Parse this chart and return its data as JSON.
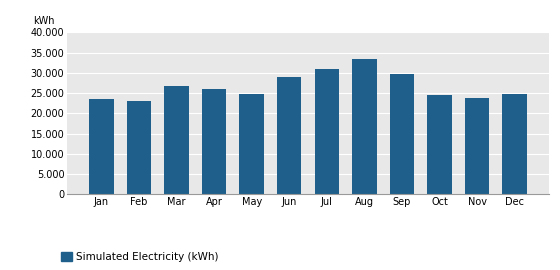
{
  "months": [
    "Jan",
    "Feb",
    "Mar",
    "Apr",
    "May",
    "Jun",
    "Jul",
    "Aug",
    "Sep",
    "Oct",
    "Nov",
    "Dec"
  ],
  "values": [
    23500,
    23000,
    26800,
    26000,
    24900,
    28900,
    31000,
    33400,
    29700,
    24500,
    23700,
    24900
  ],
  "bar_color": "#1F5F8B",
  "figure_bg_color": "#FFFFFF",
  "plot_bg_color": "#E8E8E8",
  "ylabel": "kWh",
  "ylim": [
    0,
    40000
  ],
  "yticks": [
    0,
    5000,
    10000,
    15000,
    20000,
    25000,
    30000,
    35000,
    40000
  ],
  "legend_label": "Simulated Electricity (kWh)",
  "grid_color": "#FFFFFF",
  "tick_label_fontsize": 7,
  "ylabel_fontsize": 7,
  "bar_width": 0.65
}
